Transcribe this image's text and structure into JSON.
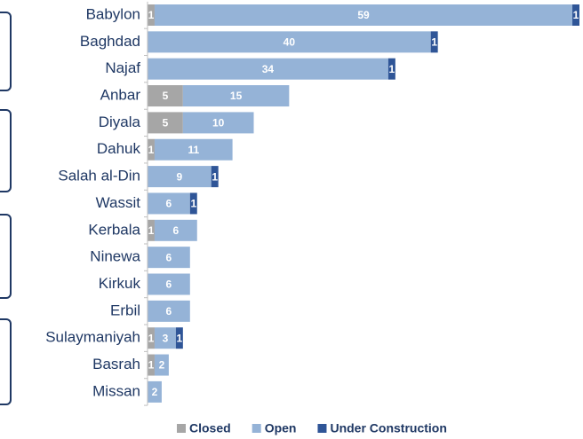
{
  "chart_data": {
    "type": "bar",
    "orientation": "horizontal",
    "stacked": true,
    "categories": [
      "Babylon",
      "Baghdad",
      "Najaf",
      "Anbar",
      "Diyala",
      "Dahuk",
      "Salah al-Din",
      "Wassit",
      "Kerbala",
      "Ninewa",
      "Kirkuk",
      "Erbil",
      "Sulaymaniyah",
      "Basrah",
      "Missan"
    ],
    "series": [
      {
        "name": "Closed",
        "color": "#a6a6a6",
        "values": [
          1,
          null,
          null,
          5,
          5,
          1,
          null,
          null,
          1,
          null,
          null,
          null,
          1,
          1,
          null
        ]
      },
      {
        "name": "Open",
        "color": "#95b3d7",
        "values": [
          59,
          40,
          34,
          15,
          10,
          11,
          9,
          6,
          6,
          6,
          6,
          6,
          3,
          2,
          2
        ]
      },
      {
        "name": "Under Construction",
        "color": "#2f5597",
        "values": [
          1,
          1,
          1,
          null,
          null,
          null,
          1,
          1,
          null,
          null,
          null,
          null,
          1,
          null,
          null
        ]
      }
    ],
    "legend": "bottom"
  }
}
